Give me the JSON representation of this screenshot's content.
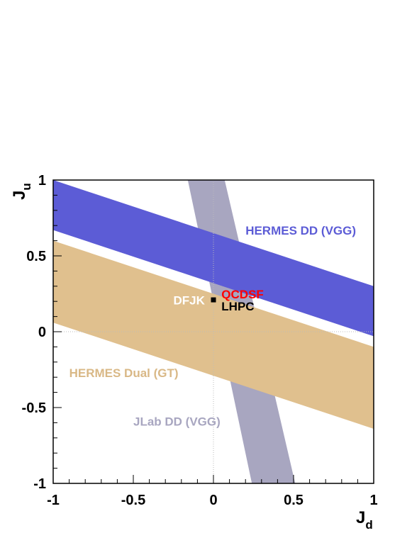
{
  "chart_data": {
    "type": "area",
    "xlabel": "J",
    "xlabel_sub": "d",
    "ylabel": "J",
    "ylabel_sub": "u",
    "xlim": [
      -1,
      1
    ],
    "ylim": [
      -1,
      1
    ],
    "xticks": [
      -1,
      -0.5,
      0,
      0.5,
      1
    ],
    "xtick_labels": [
      "-1",
      "-0.5",
      "0",
      "0.5",
      "1"
    ],
    "yticks": [
      -1,
      -0.5,
      0,
      0.5,
      1
    ],
    "ytick_labels": [
      "-1",
      "-0.5",
      "0",
      "0.5",
      "1"
    ],
    "grid": false,
    "reference_lines": [
      {
        "axis": "x",
        "value": 0
      },
      {
        "axis": "y",
        "value": 0
      }
    ],
    "bands": [
      {
        "name": "JLab DD (VGG)",
        "color": "#a8a6c0",
        "polygon": [
          [
            -0.16,
            1.0
          ],
          [
            0.07,
            1.0
          ],
          [
            0.51,
            -1.0
          ],
          [
            0.24,
            -1.0
          ]
        ]
      },
      {
        "name": "HERMES Dual (GT)",
        "color": "#e0c08e",
        "polygon": [
          [
            -1.0,
            0.6
          ],
          [
            1.0,
            -0.1
          ],
          [
            1.0,
            -0.64
          ],
          [
            -1.0,
            0.06
          ]
        ]
      },
      {
        "name": "HERMES DD (VGG)",
        "color": "#5c5cd6",
        "polygon": [
          [
            -1.0,
            1.0
          ],
          [
            1.0,
            0.3
          ],
          [
            1.0,
            -0.03
          ],
          [
            -1.0,
            0.67
          ]
        ]
      }
    ],
    "points": [
      {
        "name": "DFJK",
        "x": 0.0,
        "y": 0.21,
        "color": "#000000"
      }
    ],
    "annotations": [
      {
        "text": "HERMES DD (VGG)",
        "x": 0.2,
        "y": 0.64,
        "color": "#5c5cd6"
      },
      {
        "text": "HERMES Dual (GT)",
        "x": -0.9,
        "y": -0.3,
        "color": "#d9b886"
      },
      {
        "text": "JLab DD (VGG)",
        "x": -0.5,
        "y": -0.62,
        "color": "#a8a6c0"
      },
      {
        "text": "DFJK",
        "x": -0.25,
        "y": 0.18,
        "color": "#ffffff"
      },
      {
        "text": "QCDSF",
        "x": 0.05,
        "y": 0.22,
        "color": "#ff0000"
      },
      {
        "text": "LHPC",
        "x": 0.05,
        "y": 0.14,
        "color": "#000000"
      }
    ]
  }
}
